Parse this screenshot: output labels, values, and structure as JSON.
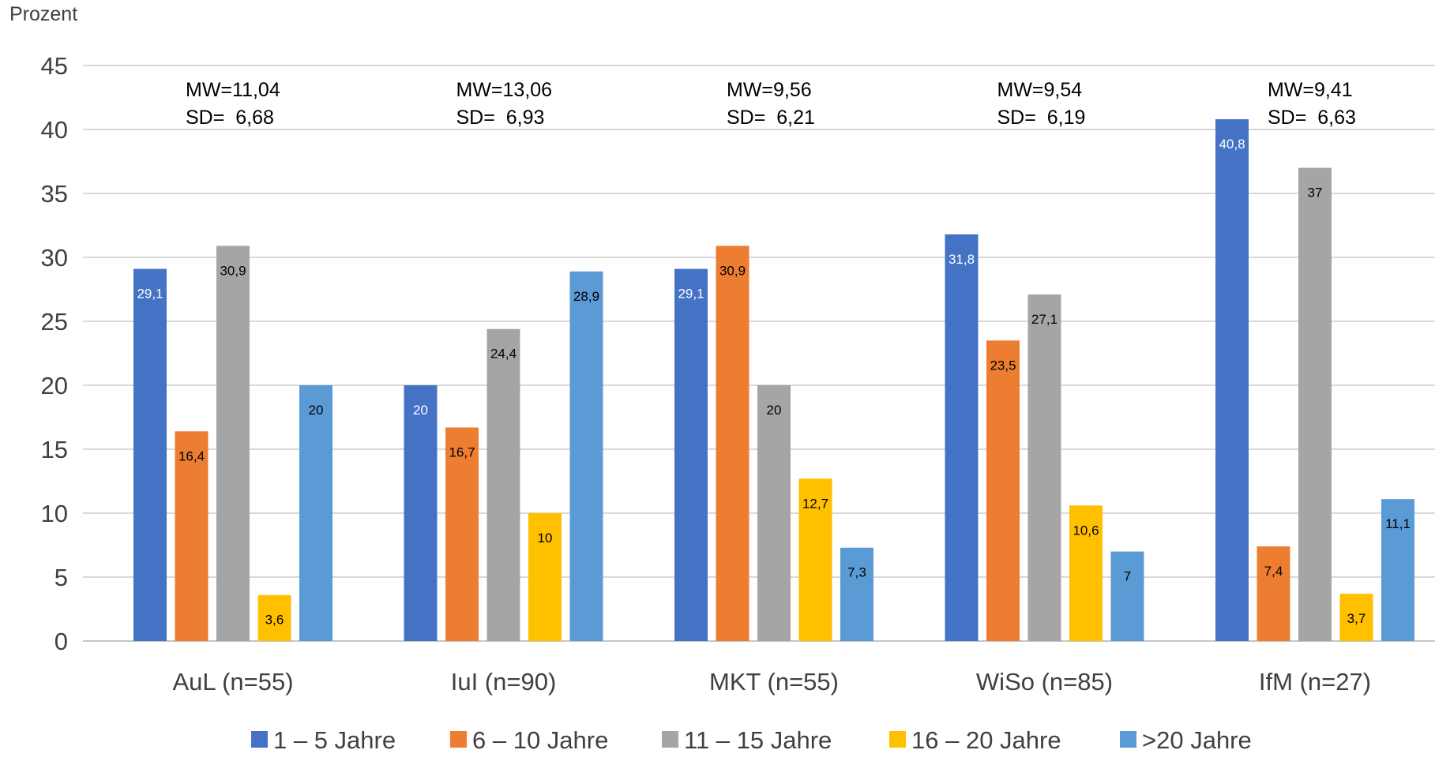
{
  "chart_data": {
    "type": "bar",
    "ylabel": "Prozent",
    "ylim": [
      0,
      45
    ],
    "yticks": [
      0,
      5,
      10,
      15,
      20,
      25,
      30,
      35,
      40,
      45
    ],
    "grid": true,
    "legend_position": "bottom",
    "categories": [
      "AuL (n=55)",
      "IuI (n=90)",
      "MKT (n=55)",
      "WiSo (n=85)",
      "IfM (n=27)"
    ],
    "annotations": [
      {
        "line1": "MW=11,04",
        "line2": "SD=  6,68"
      },
      {
        "line1": "MW=13,06",
        "line2": "SD=  6,93"
      },
      {
        "line1": "MW=9,56",
        "line2": "SD=  6,21"
      },
      {
        "line1": "MW=9,54",
        "line2": "SD=  6,19"
      },
      {
        "line1": "MW=9,41",
        "line2": "SD=  6,63"
      }
    ],
    "series": [
      {
        "name": "1 – 5 Jahre",
        "color": "#4472C4",
        "label_color": "#ffffff",
        "values": [
          29.1,
          20,
          29.1,
          31.8,
          40.8
        ],
        "labels": [
          "29,1",
          "20",
          "29,1",
          "31,8",
          "40,8"
        ]
      },
      {
        "name": "6 – 10 Jahre",
        "color": "#ED7D31",
        "label_color": "#000000",
        "values": [
          16.4,
          16.7,
          30.9,
          23.5,
          7.4
        ],
        "labels": [
          "16,4",
          "16,7",
          "30,9",
          "23,5",
          "7,4"
        ]
      },
      {
        "name": "11 – 15 Jahre",
        "color": "#A5A5A5",
        "label_color": "#000000",
        "values": [
          30.9,
          24.4,
          20,
          27.1,
          37
        ],
        "labels": [
          "30,9",
          "24,4",
          "20",
          "27,1",
          "37"
        ]
      },
      {
        "name": "16 – 20 Jahre",
        "color": "#FFC000",
        "label_color": "#000000",
        "values": [
          3.6,
          10,
          12.7,
          10.6,
          3.7
        ],
        "labels": [
          "3,6",
          "10",
          "12,7",
          "10,6",
          "3,7"
        ]
      },
      {
        "name": ">20 Jahre",
        "color": "#5B9BD5",
        "label_color": "#000000",
        "values": [
          20,
          28.9,
          7.3,
          7,
          11.1
        ],
        "labels": [
          "20",
          "28,9",
          "7,3",
          "7",
          "11,1"
        ]
      }
    ]
  }
}
